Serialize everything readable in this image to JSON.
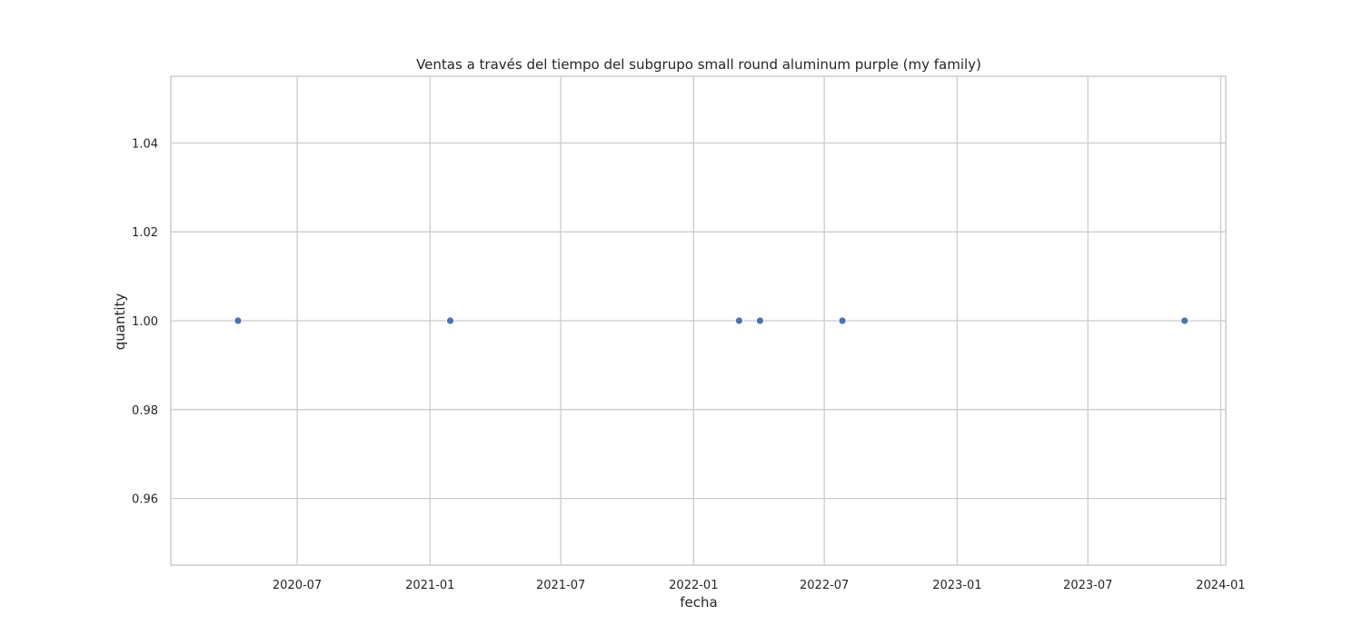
{
  "chart_data": {
    "type": "scatter",
    "title": "Ventas a través del tiempo del subgrupo small round aluminum purple (my family)",
    "xlabel": "fecha",
    "ylabel": "quantity",
    "x_scale": "date",
    "x_ticks": [
      "2020-07-01",
      "2021-01-01",
      "2021-07-01",
      "2022-01-01",
      "2022-07-01",
      "2023-01-01",
      "2023-07-01",
      "2024-01-01"
    ],
    "x_tick_labels": [
      "2020-07",
      "2021-01",
      "2021-07",
      "2022-01",
      "2022-07",
      "2023-01",
      "2023-07",
      "2024-01"
    ],
    "xlim": [
      "2020-01-08",
      "2024-01-08"
    ],
    "y_ticks": [
      0.96,
      0.98,
      1.0,
      1.02,
      1.04
    ],
    "y_tick_labels": [
      "0.96",
      "0.98",
      "1.00",
      "1.02",
      "1.04"
    ],
    "ylim": [
      0.945,
      1.055
    ],
    "grid": true,
    "marker_color": "#4c72b0",
    "points": [
      {
        "x": "2020-04-10",
        "y": 1.0
      },
      {
        "x": "2021-01-29",
        "y": 1.0
      },
      {
        "x": "2022-03-05",
        "y": 1.0
      },
      {
        "x": "2022-04-03",
        "y": 1.0
      },
      {
        "x": "2022-07-26",
        "y": 1.0
      },
      {
        "x": "2023-11-12",
        "y": 1.0
      }
    ]
  }
}
